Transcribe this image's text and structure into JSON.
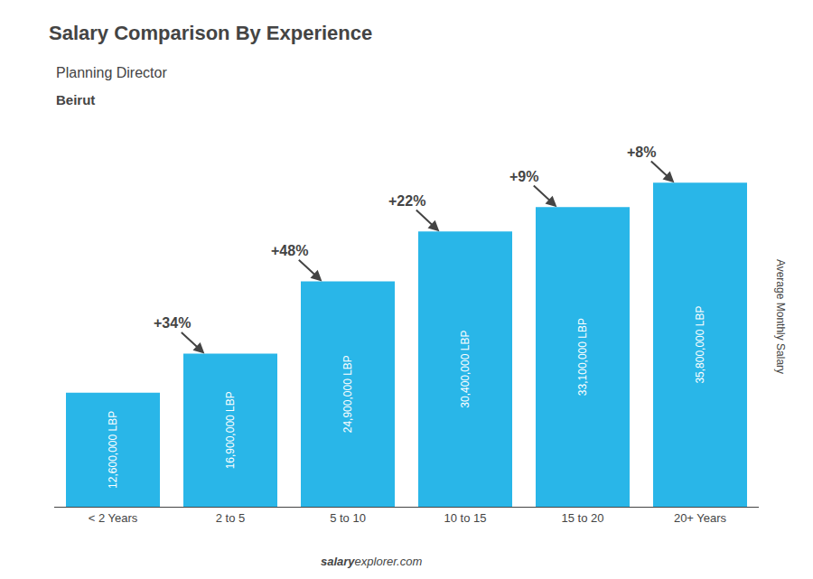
{
  "chart_data": {
    "type": "bar",
    "title": "Salary Comparison By Experience",
    "subtitle": "Planning Director",
    "location": "Beirut",
    "ylabel": "Average Monthly Salary",
    "watermark": [
      "salary",
      "explorer.com"
    ],
    "categories": [
      "< 2 Years",
      "2 to 5",
      "5 to 10",
      "10 to 15",
      "15 to 20",
      "20+ Years"
    ],
    "values": [
      12600000,
      16900000,
      24900000,
      30400000,
      33100000,
      35800000
    ],
    "value_labels": [
      "12,600,000 LBP",
      "16,900,000 LBP",
      "24,900,000 LBP",
      "30,400,000 LBP",
      "33,100,000 LBP",
      "35,800,000 LBP"
    ],
    "data_labels": true,
    "annotations": [
      "+34%",
      "+48%",
      "+22%",
      "+9%",
      "+8%"
    ],
    "color": "#29b6e8",
    "ylim": [
      0,
      42000000
    ],
    "tick_labels": "x",
    "grid": false
  }
}
